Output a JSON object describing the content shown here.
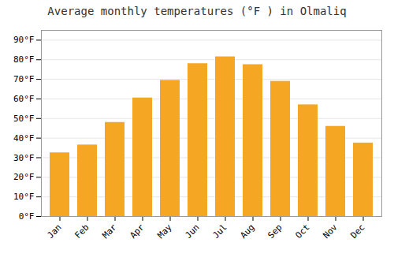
{
  "chart_data": {
    "type": "bar",
    "title": "Average monthly temperatures (°F ) in Olmaliq",
    "categories": [
      "Jan",
      "Feb",
      "Mar",
      "Apr",
      "May",
      "Jun",
      "Jul",
      "Aug",
      "Sep",
      "Oct",
      "Nov",
      "Dec"
    ],
    "values": [
      32.5,
      36.5,
      48,
      60.5,
      69.5,
      78,
      81.5,
      77.5,
      69,
      57,
      46,
      37.5
    ],
    "color": "#F5A623",
    "ylim": [
      0,
      95
    ],
    "yticks": [
      {
        "value": 0,
        "label": "0°F"
      },
      {
        "value": 10,
        "label": "10°F"
      },
      {
        "value": 20,
        "label": "20°F"
      },
      {
        "value": 30,
        "label": "30°F"
      },
      {
        "value": 40,
        "label": "40°F"
      },
      {
        "value": 50,
        "label": "50°F"
      },
      {
        "value": 60,
        "label": "60°F"
      },
      {
        "value": 70,
        "label": "70°F"
      },
      {
        "value": 80,
        "label": "80°F"
      },
      {
        "value": 90,
        "label": "90°F"
      }
    ],
    "grid": true
  }
}
